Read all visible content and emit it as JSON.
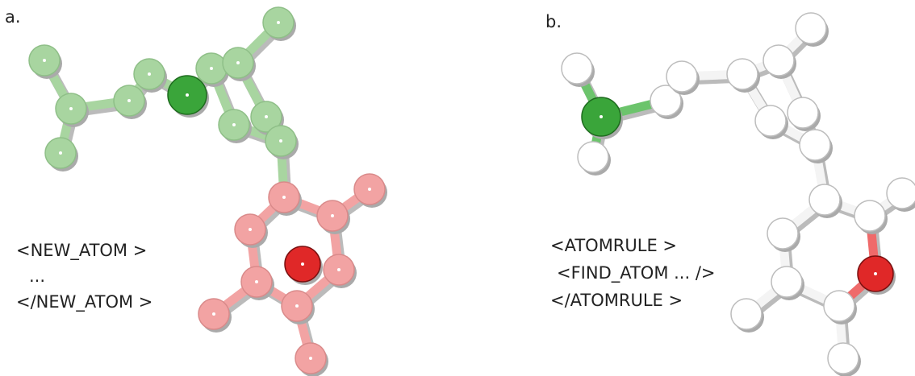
{
  "panels": [
    {
      "label": "a.",
      "code": [
        "<NEW_ATOM >",
        "...",
        "</NEW_ATOM >"
      ]
    },
    {
      "label": "b.",
      "code": [
        "<ATOMRULE >",
        "<FIND_ATOM ... />",
        "</ATOMRULE >"
      ]
    }
  ]
}
